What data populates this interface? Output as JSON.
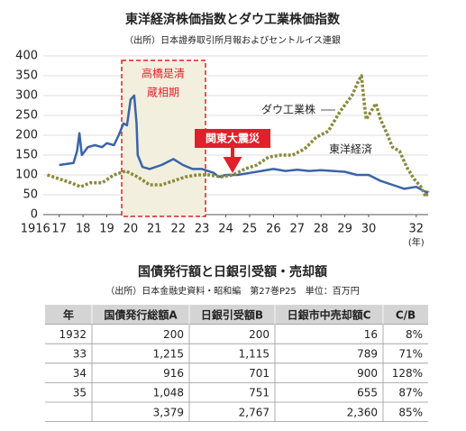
{
  "chart_data": {
    "type": "line",
    "title": "東洋経済株価指数とダウ工業株価指数",
    "subtitle": "（出所）日本證券取引所月報およびセントルイス連銀",
    "x_label": "(年)",
    "annotations": [
      "高橋是清",
      "蔵相期",
      "関東大震災"
    ],
    "xlim": [
      1915.8,
      1932.5
    ],
    "xticks": [
      1916,
      {
        "value": 1917,
        "label": "17"
      },
      {
        "value": 1918,
        "label": "18"
      },
      {
        "value": 1919,
        "label": "19"
      },
      {
        "value": 1920,
        "label": "20"
      },
      {
        "value": 1921,
        "label": "21"
      },
      {
        "value": 1922,
        "label": "22"
      },
      {
        "value": 1923,
        "label": "23"
      },
      {
        "value": 1924,
        "label": "24"
      },
      {
        "value": 1925,
        "label": "25"
      },
      {
        "value": 1926,
        "label": "26"
      },
      {
        "value": 1927,
        "label": "27"
      },
      {
        "value": 1928,
        "label": "28"
      },
      {
        "value": 1929,
        "label": "29"
      },
      {
        "value": 1930,
        "label": "30"
      },
      {
        "value": 1932,
        "label": "32"
      }
    ],
    "ylim": [
      0,
      400
    ],
    "yticks": [
      0,
      50,
      100,
      150,
      200,
      250,
      300,
      350,
      400
    ],
    "grid": true,
    "series": [
      {
        "name": "東洋経済",
        "color": "#3a64a8",
        "dashed": false,
        "x": [
          1917.0,
          1917.6,
          1917.75,
          1917.85,
          1917.95,
          1918.2,
          1918.5,
          1918.8,
          1919.0,
          1919.3,
          1919.5,
          1919.7,
          1919.85,
          1920.0,
          1920.15,
          1920.25,
          1920.3,
          1920.5,
          1920.8,
          1921.3,
          1921.8,
          1922.2,
          1922.6,
          1923.0,
          1923.5,
          1923.7,
          1924.0,
          1924.5,
          1925.0,
          1925.5,
          1926.0,
          1926.5,
          1927.0,
          1927.5,
          1928.0,
          1928.5,
          1929.0,
          1929.5,
          1930.0,
          1930.5,
          1931.0,
          1931.5,
          1932.0,
          1932.3,
          1932.5
        ],
        "values": [
          125,
          130,
          160,
          205,
          150,
          170,
          175,
          170,
          180,
          175,
          200,
          230,
          225,
          290,
          300,
          230,
          150,
          120,
          115,
          125,
          140,
          125,
          115,
          115,
          105,
          95,
          100,
          100,
          105,
          110,
          115,
          110,
          113,
          110,
          112,
          110,
          108,
          100,
          100,
          85,
          75,
          65,
          70,
          60,
          55
        ]
      },
      {
        "name": "ダウ工業株",
        "color": "#8a8a3c",
        "dashed": true,
        "x": [
          1916.5,
          1917.0,
          1917.5,
          1917.9,
          1918.3,
          1918.8,
          1919.3,
          1919.8,
          1920.3,
          1920.8,
          1921.3,
          1921.8,
          1922.3,
          1922.8,
          1923.3,
          1923.8,
          1924.3,
          1924.8,
          1925.3,
          1925.8,
          1926.3,
          1926.8,
          1927.3,
          1927.8,
          1928.3,
          1928.8,
          1929.3,
          1929.6,
          1929.7,
          1929.8,
          1929.9,
          1930.1,
          1930.3,
          1930.5,
          1930.8,
          1931.0,
          1931.3,
          1931.6,
          1931.9,
          1932.2,
          1932.4,
          1932.5
        ],
        "values": [
          100,
          90,
          80,
          70,
          80,
          80,
          100,
          110,
          95,
          75,
          75,
          85,
          95,
          100,
          100,
          95,
          100,
          115,
          125,
          145,
          150,
          150,
          165,
          195,
          210,
          260,
          300,
          340,
          350,
          290,
          240,
          260,
          280,
          240,
          200,
          170,
          160,
          120,
          90,
          70,
          45,
          60
        ]
      }
    ]
  },
  "table": {
    "title": "国債発行額と日銀引受額・売却額",
    "subtitle": "（出所）日本金融史資料・昭和編　第27巻P25　単位：百万円",
    "header": [
      "年",
      "国債発行総額A",
      "日銀引受額B",
      "日銀市中売却額C",
      "C/B"
    ],
    "rows": [
      [
        "1932",
        "200",
        "200",
        "16",
        "8%"
      ],
      [
        "33",
        "1,215",
        "1,115",
        "789",
        "71%"
      ],
      [
        "34",
        "916",
        "701",
        "900",
        "128%"
      ],
      [
        "35",
        "1,048",
        "751",
        "655",
        "87%"
      ]
    ],
    "total": [
      "3,379",
      "2,767",
      "2,360",
      "85%"
    ]
  }
}
